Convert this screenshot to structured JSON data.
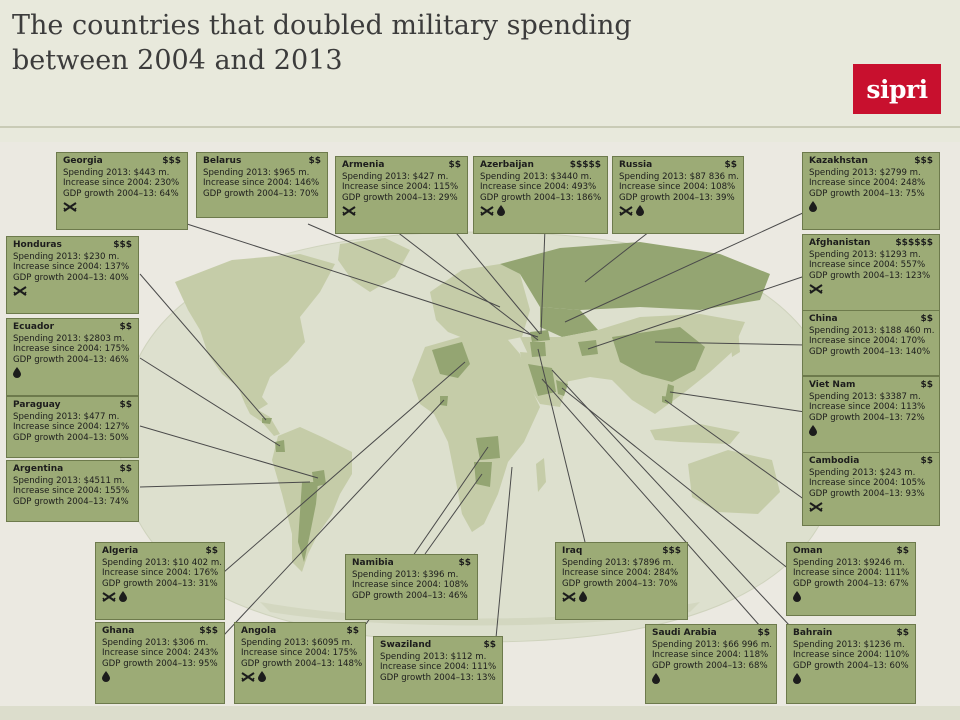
{
  "title_line1": "The countries that doubled military spending",
  "title_line2": "between 2004 and 2013",
  "logo": "sipri",
  "colors": {
    "box": "#9cab76",
    "land": "#c5cca8",
    "ocean": "#dde0ce",
    "highlight": "#94a572",
    "logo": "#c8102e"
  },
  "icon_legend": {
    "conflict": "crossed-rifles-icon",
    "oil": "oil-drop-icon"
  },
  "countries": [
    {
      "name": "Georgia",
      "rating": "$$$",
      "spending": "Spending 2013: $443 m.",
      "increase": "Increase since 2004: 230%",
      "gdp": "GDP growth 2004–13: 64%",
      "icons": [
        "conflict"
      ]
    },
    {
      "name": "Belarus",
      "rating": "$$",
      "spending": "Spending 2013: $965 m.",
      "increase": "Increase since 2004: 146%",
      "gdp": "GDP growth 2004–13: 70%",
      "icons": []
    },
    {
      "name": "Armenia",
      "rating": "$$",
      "spending": "Spending 2013: $427 m.",
      "increase": "Increase since 2004: 115%",
      "gdp": "GDP growth 2004–13: 29%",
      "icons": [
        "conflict"
      ]
    },
    {
      "name": "Azerbaijan",
      "rating": "$$$$$",
      "spending": "Spending 2013: $3440 m.",
      "increase": "Increase since 2004: 493%",
      "gdp": "GDP growth 2004–13: 186%",
      "icons": [
        "conflict",
        "oil"
      ]
    },
    {
      "name": "Russia",
      "rating": "$$",
      "spending": "Spending 2013: $87 836 m.",
      "increase": "Increase since 2004: 108%",
      "gdp": "GDP growth 2004–13: 39%",
      "icons": [
        "conflict",
        "oil"
      ]
    },
    {
      "name": "Kazakhstan",
      "rating": "$$$",
      "spending": "Spending 2013: $2799 m.",
      "increase": "Increase since 2004: 248%",
      "gdp": "GDP growth 2004–13: 75%",
      "icons": [
        "oil"
      ]
    },
    {
      "name": "Honduras",
      "rating": "$$$",
      "spending": "Spending 2013: $230 m.",
      "increase": "Increase since 2004: 137%",
      "gdp": "GDP growth 2004–13: 40%",
      "icons": [
        "conflict"
      ]
    },
    {
      "name": "Afghanistan",
      "rating": "$$$$$$",
      "spending": "Spending 2013: $1293 m.",
      "increase": "Increase since 2004: 557%",
      "gdp": "GDP growth 2004–13: 123%",
      "icons": [
        "conflict"
      ]
    },
    {
      "name": "Ecuador",
      "rating": "$$",
      "spending": "Spending 2013: $2803 m.",
      "increase": "Increase since 2004: 175%",
      "gdp": "GDP growth 2004–13: 46%",
      "icons": [
        "oil"
      ]
    },
    {
      "name": "China",
      "rating": "$$",
      "spending": "Spending 2013: $188 460 m.",
      "increase": "Increase since 2004: 170%",
      "gdp": "GDP growth 2004–13: 140%",
      "icons": []
    },
    {
      "name": "Paraguay",
      "rating": "$$",
      "spending": "Spending 2013: $477 m.",
      "increase": "Increase since 2004: 127%",
      "gdp": "GDP growth 2004–13: 50%",
      "icons": []
    },
    {
      "name": "Viet Nam",
      "rating": "$$",
      "spending": "Spending 2013: $3387 m.",
      "increase": "Increase since 2004: 113%",
      "gdp": "GDP growth 2004–13: 72%",
      "icons": [
        "oil"
      ]
    },
    {
      "name": "Argentina",
      "rating": "$$",
      "spending": "Spending 2013: $4511 m.",
      "increase": "Increase since 2004: 155%",
      "gdp": "GDP growth 2004–13: 74%",
      "icons": []
    },
    {
      "name": "Cambodia",
      "rating": "$$",
      "spending": "Spending 2013: $243 m.",
      "increase": "Increase since 2004: 105%",
      "gdp": "GDP growth 2004–13: 93%",
      "icons": [
        "conflict"
      ]
    },
    {
      "name": "Algeria",
      "rating": "$$",
      "spending": "Spending 2013: $10 402 m.",
      "increase": "Increase since 2004: 176%",
      "gdp": "GDP growth 2004–13: 31%",
      "icons": [
        "conflict",
        "oil"
      ]
    },
    {
      "name": "Namibia",
      "rating": "$$",
      "spending": "Spending 2013: $396 m.",
      "increase": "Increase since 2004: 108%",
      "gdp": "GDP growth 2004–13: 46%",
      "icons": []
    },
    {
      "name": "Iraq",
      "rating": "$$$",
      "spending": "Spending 2013: $7896 m.",
      "increase": "Increase since 2004: 284%",
      "gdp": "GDP growth 2004–13: 70%",
      "icons": [
        "conflict",
        "oil"
      ]
    },
    {
      "name": "Oman",
      "rating": "$$",
      "spending": "Spending 2013: $9246 m.",
      "increase": "Increase since 2004: 111%",
      "gdp": "GDP growth 2004–13: 67%",
      "icons": [
        "oil"
      ]
    },
    {
      "name": "Ghana",
      "rating": "$$$",
      "spending": "Spending 2013: $306 m.",
      "increase": "Increase since 2004: 243%",
      "gdp": "GDP growth 2004–13: 95%",
      "icons": [
        "oil"
      ]
    },
    {
      "name": "Angola",
      "rating": "$$",
      "spending": "Spending 2013: $6095 m.",
      "increase": "Increase since 2004: 175%",
      "gdp": "GDP growth 2004–13: 148%",
      "icons": [
        "conflict",
        "oil"
      ]
    },
    {
      "name": "Swaziland",
      "rating": "$$",
      "spending": "Spending 2013: $112 m.",
      "increase": "Increase since 2004: 111%",
      "gdp": "GDP growth 2004–13: 13%",
      "icons": []
    },
    {
      "name": "Saudi Arabia",
      "rating": "$$",
      "spending": "Spending 2013: $66 996 m.",
      "increase": "Increase since 2004: 118%",
      "gdp": "GDP growth 2004–13: 68%",
      "icons": [
        "oil"
      ]
    },
    {
      "name": "Bahrain",
      "rating": "$$",
      "spending": "Spending 2013: $1236 m.",
      "increase": "Increase since 2004: 110%",
      "gdp": "GDP growth 2004–13: 60%",
      "icons": [
        "oil"
      ]
    }
  ]
}
